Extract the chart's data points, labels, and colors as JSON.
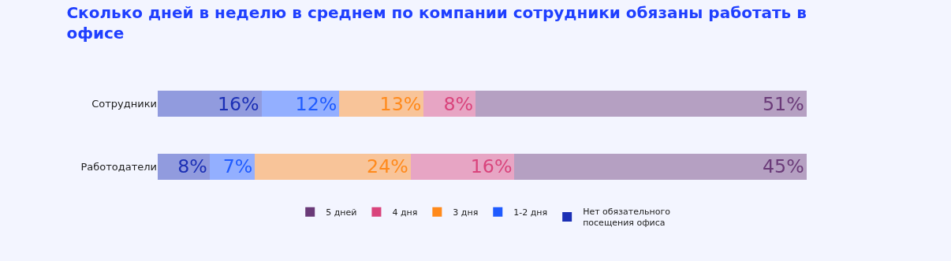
{
  "chart_data": {
    "type": "bar",
    "orientation": "horizontal",
    "stacked": true,
    "title": "Сколько дней в неделю в среднем по компании сотрудники обязаны работать в офисе",
    "categories": [
      "Сотрудники",
      "Работодатели"
    ],
    "legend": "bottom",
    "grid": false,
    "tick_labels": "y",
    "series": [
      {
        "name": "Нет обязательного посещения офиса",
        "color": "#1b2fb5",
        "values": [
          16,
          8
        ],
        "value_labels": [
          "16%",
          "8%"
        ]
      },
      {
        "name": "1-2 дня",
        "color": "#1f5bff",
        "values": [
          12,
          7
        ],
        "value_labels": [
          "12%",
          "7%"
        ]
      },
      {
        "name": "3 дня",
        "color": "#ff8a1c",
        "values": [
          13,
          24
        ],
        "value_labels": [
          "13%",
          "24%"
        ]
      },
      {
        "name": "4 дня",
        "color": "#d9447c",
        "values": [
          8,
          16
        ],
        "value_labels": [
          "8%",
          "16%"
        ]
      },
      {
        "name": "5 дней",
        "color": "#6a3a78",
        "values": [
          51,
          45
        ],
        "value_labels": [
          "51%",
          "45%"
        ]
      }
    ]
  }
}
